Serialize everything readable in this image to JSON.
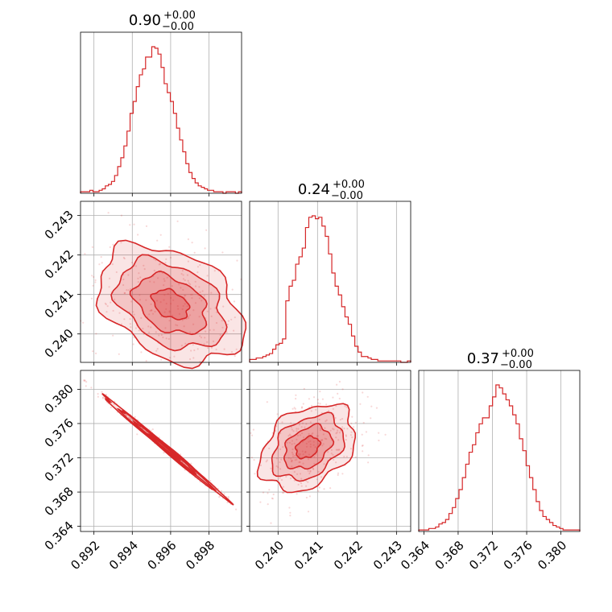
{
  "colors": {
    "accent": "#d62728",
    "grid": "#b0b0b0",
    "background": "#ffffff"
  },
  "chart_data": {
    "type": "corner",
    "parameters": [
      {
        "title_main": "0.90",
        "title_sup": "+0.00",
        "title_sub": "−0.00",
        "lim": [
          0.8913,
          0.8997
        ],
        "ticks": [
          0.892,
          0.894,
          0.896,
          0.898
        ],
        "tick_labels": [
          "0.892",
          "0.894",
          "0.896",
          "0.898"
        ]
      },
      {
        "title_main": "0.24",
        "title_sup": "+0.00",
        "title_sub": "−0.00",
        "lim": [
          0.23928,
          0.24336
        ],
        "ticks": [
          0.24,
          0.241,
          0.242,
          0.243
        ],
        "tick_labels": [
          "0.240",
          "0.241",
          "0.242",
          "0.243"
        ]
      },
      {
        "title_main": "0.37",
        "title_sup": "+0.00",
        "title_sub": "−0.00",
        "lim": [
          0.3634,
          0.3822
        ],
        "ticks": [
          0.364,
          0.368,
          0.372,
          0.376,
          0.38
        ],
        "tick_labels": [
          "0.364",
          "0.368",
          "0.372",
          "0.376",
          "0.380"
        ]
      }
    ],
    "histograms": [
      {
        "counts": [
          1,
          1,
          1,
          2,
          1,
          1,
          2,
          3,
          5,
          6,
          8,
          12,
          18,
          24,
          32,
          42,
          54,
          62,
          72,
          80,
          84,
          92,
          92,
          99,
          98,
          94,
          85,
          74,
          68,
          62,
          54,
          44,
          36,
          28,
          20,
          14,
          10,
          7,
          5,
          4,
          3,
          2,
          2,
          1,
          1,
          1,
          0,
          1,
          1,
          1,
          0,
          1
        ]
      },
      {
        "counts": [
          2,
          2,
          3,
          3,
          4,
          5,
          6,
          9,
          12,
          13,
          16,
          42,
          52,
          56,
          67,
          72,
          78,
          92,
          99,
          100,
          98,
          99,
          93,
          86,
          74,
          61,
          52,
          46,
          38,
          31,
          26,
          18,
          11,
          7,
          4,
          4,
          3,
          2,
          2,
          1,
          1,
          1,
          1,
          1,
          1,
          1,
          0,
          0,
          1
        ]
      },
      {
        "counts": [
          1,
          1,
          1,
          2,
          2,
          3,
          5,
          6,
          8,
          12,
          16,
          22,
          28,
          36,
          45,
          53,
          58,
          66,
          72,
          76,
          76,
          84,
          90,
          98,
          96,
          92,
          88,
          84,
          78,
          72,
          62,
          54,
          44,
          36,
          28,
          20,
          14,
          10,
          8,
          6,
          4,
          3,
          2,
          1,
          1,
          1,
          1,
          1
        ]
      }
    ],
    "pairs": [
      {
        "x_param": 0,
        "y_param": 1,
        "center": [
          0.896,
          0.24075
        ],
        "dir": [
          0.0016,
          -0.0006
        ],
        "perp": [
          0.001,
          0.00045
        ],
        "sigma_major": 1.0,
        "sigma_minor": 1.0
      },
      {
        "x_param": 0,
        "y_param": 2,
        "center": [
          0.8957,
          0.3732
        ],
        "dir": [
          0.0016,
          -0.003
        ],
        "perp": [
          6e-05,
          0.00012
        ],
        "sigma_major": 1.0,
        "sigma_minor": 1.0
      },
      {
        "x_param": 1,
        "y_param": 2,
        "center": [
          0.24075,
          0.3732
        ],
        "dir": [
          0.00045,
          0.0022
        ],
        "perp": [
          0.0004,
          -0.0012
        ],
        "sigma_major": 1.0,
        "sigma_minor": 1.0
      }
    ],
    "contour_levels": [
      0.5,
      1.0,
      1.5,
      2.0
    ],
    "grid": true
  }
}
